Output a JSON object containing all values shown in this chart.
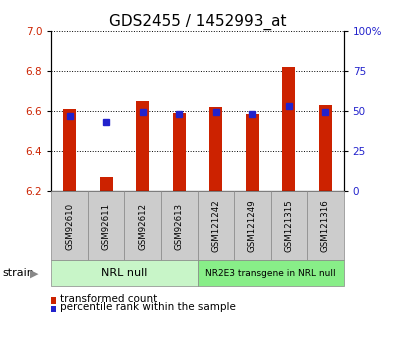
{
  "title": "GDS2455 / 1452993_at",
  "categories": [
    "GSM92610",
    "GSM92611",
    "GSM92612",
    "GSM92613",
    "GSM121242",
    "GSM121249",
    "GSM121315",
    "GSM121316"
  ],
  "red_values": [
    6.61,
    6.27,
    6.65,
    6.59,
    6.62,
    6.585,
    6.82,
    6.63
  ],
  "blue_values": [
    6.578,
    6.548,
    6.595,
    6.588,
    6.598,
    6.585,
    6.625,
    6.595
  ],
  "y_min": 6.2,
  "y_max": 7.0,
  "y_ticks": [
    6.2,
    6.4,
    6.6,
    6.8,
    7.0
  ],
  "y2_ticks": [
    0,
    25,
    50,
    75,
    100
  ],
  "y2_tick_labels": [
    "0",
    "25",
    "50",
    "75",
    "100%"
  ],
  "group1_label": "NRL null",
  "group2_label": "NR2E3 transgene in NRL null",
  "group1_indices": [
    0,
    1,
    2,
    3
  ],
  "group2_indices": [
    4,
    5,
    6,
    7
  ],
  "group1_color": "#c8f5c8",
  "group2_color": "#88ee88",
  "tick_bg_color": "#cccccc",
  "red_color": "#cc2200",
  "blue_color": "#2222cc",
  "legend_red_label": "transformed count",
  "legend_blue_label": "percentile rank within the sample",
  "strain_label": "strain",
  "title_fontsize": 11,
  "tick_fontsize": 7.5
}
